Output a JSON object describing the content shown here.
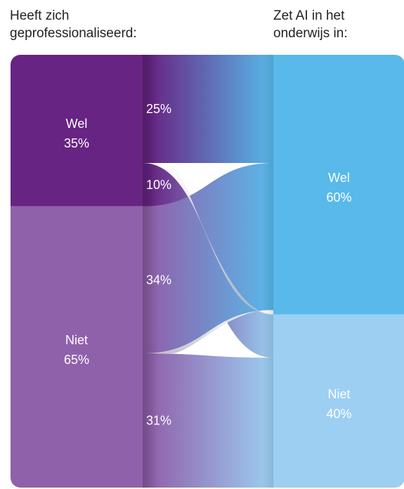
{
  "headers": {
    "left": "Heeft zich\ngeprofessionaliseerd:",
    "right": "Zet AI in het\nonderwijs in:"
  },
  "colors": {
    "left_wel": "#672483",
    "left_niet": "#9061AB",
    "right_wel": "#58B9EA",
    "right_niet": "#9CCFF2",
    "text_light": "#ffffff"
  },
  "chart_data": {
    "type": "sankey",
    "left_nodes": [
      {
        "id": "wel",
        "label": "Wel",
        "pct": "35%",
        "value": 35
      },
      {
        "id": "niet",
        "label": "Niet",
        "pct": "65%",
        "value": 65
      }
    ],
    "right_nodes": [
      {
        "id": "wel",
        "label": "Wel",
        "pct": "60%",
        "value": 60
      },
      {
        "id": "niet",
        "label": "Niet",
        "pct": "40%",
        "value": 40
      }
    ],
    "flows": [
      {
        "from": "wel",
        "to": "wel",
        "value": 25,
        "label": "25%"
      },
      {
        "from": "wel",
        "to": "niet",
        "value": 10,
        "label": "10%"
      },
      {
        "from": "niet",
        "to": "wel",
        "value": 34,
        "label": "34%"
      },
      {
        "from": "niet",
        "to": "niet",
        "value": 31,
        "label": "31%"
      }
    ]
  }
}
